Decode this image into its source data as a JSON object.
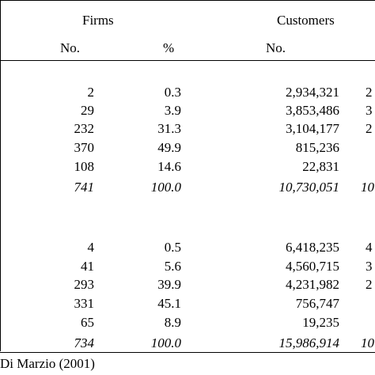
{
  "header": {
    "firms": "Firms",
    "customers": "Customers",
    "no_firms": "No.",
    "pct_firms": "%",
    "no_customers": "No."
  },
  "section1": {
    "rows": [
      {
        "firms_no": "2",
        "firms_pct": "0.3",
        "cust_no": "2,934,321",
        "edge": "2"
      },
      {
        "firms_no": "29",
        "firms_pct": "3.9",
        "cust_no": "3,853,486",
        "edge": "3"
      },
      {
        "firms_no": "232",
        "firms_pct": "31.3",
        "cust_no": "3,104,177",
        "edge": "2"
      },
      {
        "firms_no": "370",
        "firms_pct": "49.9",
        "cust_no": "815,236",
        "edge": ""
      },
      {
        "firms_no": "108",
        "firms_pct": "14.6",
        "cust_no": "22,831",
        "edge": ""
      }
    ],
    "total": {
      "firms_no": "741",
      "firms_pct": "100.0",
      "cust_no": "10,730,051",
      "edge": "10"
    }
  },
  "section2": {
    "rows": [
      {
        "firms_no": "4",
        "firms_pct": "0.5",
        "cust_no": "6,418,235",
        "edge": "4"
      },
      {
        "firms_no": "41",
        "firms_pct": "5.6",
        "cust_no": "4,560,715",
        "edge": "3"
      },
      {
        "firms_no": "293",
        "firms_pct": "39.9",
        "cust_no": "4,231,982",
        "edge": "2"
      },
      {
        "firms_no": "331",
        "firms_pct": "45.1",
        "cust_no": "756,747",
        "edge": ""
      },
      {
        "firms_no": "65",
        "firms_pct": "8.9",
        "cust_no": "19,235",
        "edge": ""
      }
    ],
    "total": {
      "firms_no": "734",
      "firms_pct": "100.0",
      "cust_no": "15,986,914",
      "edge": "10"
    }
  },
  "source": "Di Marzio (2001)"
}
